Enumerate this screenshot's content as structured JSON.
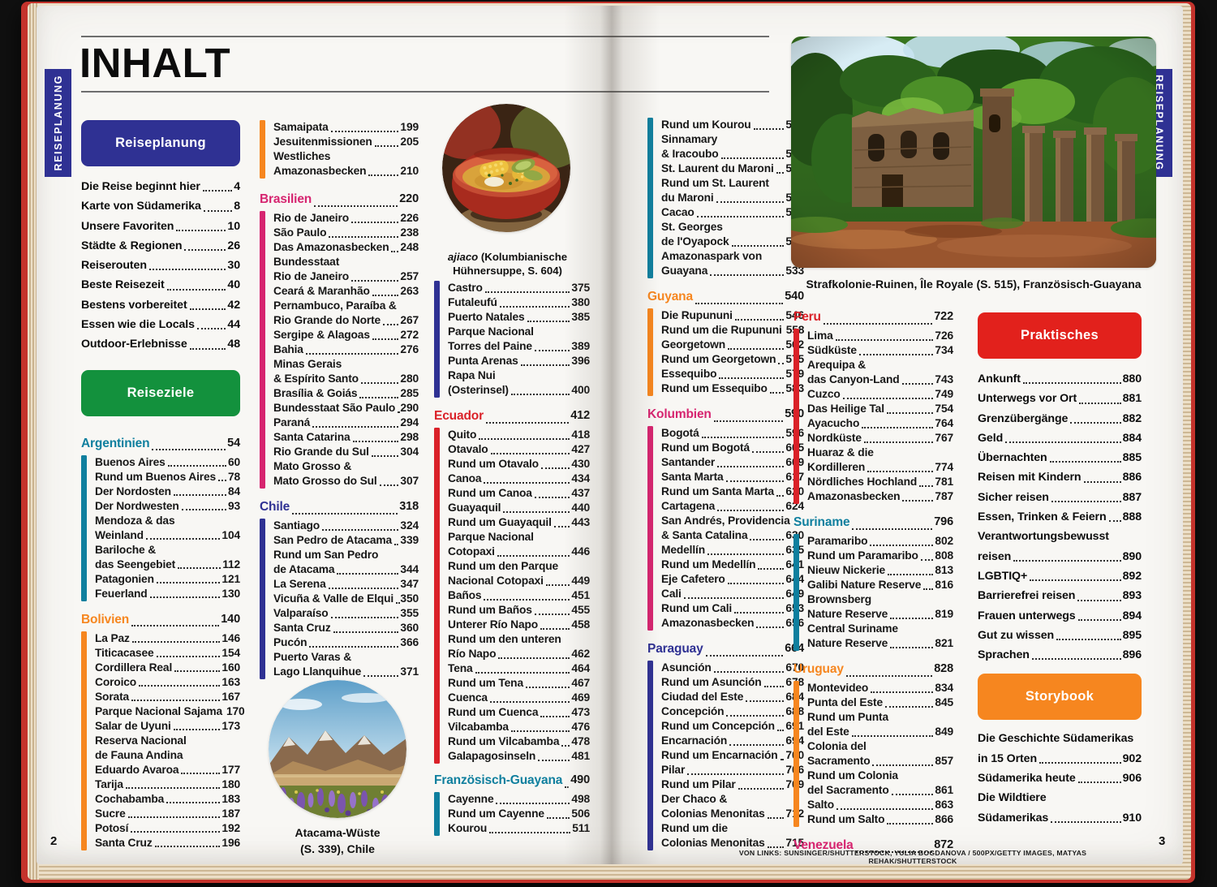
{
  "meta": {
    "title": "INHALT",
    "tab_left": "REISEPLANUNG",
    "tab_right": "REISEPLANUNG",
    "page_left_number": "2",
    "page_right_number": "3",
    "credit": "VON LINKS: SUNSINGER/SHUTTERSTOCK, YULIA BOGDANOVA / 500PX/GETTY IMAGES, MATYAS REHAK/SHUTTERSTOCK"
  },
  "palette": {
    "teal": "#0f7f9e",
    "orange": "#f6861f",
    "magenta": "#d6246f",
    "indigo": "#2f3193",
    "red": "#da2128",
    "box_blue": "#2f3193",
    "box_green": "#13913d",
    "box_red": "#e2211c",
    "box_orange": "#f6861f"
  },
  "captions": {
    "ajiaco_italic": "ajiaco",
    "ajiaco_rest": " (Kolumbianische Hühnersuppe, S. 604)",
    "atacama_line1": "Atacama-Wüste",
    "atacama_line2": "(S. 339), Chile",
    "ruins": "Strafkolonie-Ruinen, Île Royale (S. 515), Französisch-Guayana"
  },
  "toc": {
    "colA": [
      {
        "box": "Reiseplanung",
        "color": "box_blue"
      },
      {
        "plain": true,
        "items": [
          {
            "t": "Die Reise beginnt hier",
            "p": "4"
          },
          {
            "t": "Karte von Südamerika",
            "p": "8"
          },
          {
            "t": "Unsere Favoriten",
            "p": "10"
          },
          {
            "t": "Städte & Regionen",
            "p": "26"
          },
          {
            "t": "Reiserouten",
            "p": "30"
          },
          {
            "t": "Beste Reisezeit",
            "p": "40"
          },
          {
            "t": "Bestens vorbereitet",
            "p": "42"
          },
          {
            "t": "Essen wie die Locals",
            "p": "44"
          },
          {
            "t": "Outdoor-Erlebnisse",
            "p": "48"
          }
        ]
      },
      {
        "box": "Reiseziele",
        "color": "box_green"
      },
      {
        "h": "Argentinien",
        "hp": "54",
        "c": "teal",
        "items": [
          {
            "t": "Buenos Aires",
            "p": "60"
          },
          {
            "t": "Rund um Buenos Aires",
            "p": "78"
          },
          {
            "t": "Der Nordosten",
            "p": "84"
          },
          {
            "t": "Der Nordwesten",
            "p": "93"
          },
          {
            "t": "Mendoza & das|Weinland",
            "p": "104"
          },
          {
            "t": "Bariloche &|das Seengebiet",
            "p": "112"
          },
          {
            "t": "Patagonien",
            "p": "121"
          },
          {
            "t": "Feuerland",
            "p": "130"
          }
        ]
      },
      {
        "h": "Bolivien",
        "hp": "140",
        "c": "orange",
        "items": [
          {
            "t": "La Paz",
            "p": "146"
          },
          {
            "t": "Titicacasee",
            "p": "154"
          },
          {
            "t": "Cordillera Real",
            "p": "160"
          },
          {
            "t": "Coroico",
            "p": "163"
          },
          {
            "t": "Sorata",
            "p": "167"
          },
          {
            "t": "Parque Nacional Sajama",
            "p": "170"
          },
          {
            "t": "Salar de Uyuni",
            "p": "173"
          },
          {
            "t": "Reserva Nacional|de Fauna Andina|Eduardo Avaroa",
            "p": "177"
          },
          {
            "t": "Tarija",
            "p": "180"
          },
          {
            "t": "Cochabamba",
            "p": "183"
          },
          {
            "t": "Sucre",
            "p": "187"
          },
          {
            "t": "Potosí",
            "p": "192"
          },
          {
            "t": "Santa Cruz",
            "p": "196"
          }
        ]
      }
    ],
    "colB": [
      {
        "c": "orange",
        "items": [
          {
            "t": "Samaipata",
            "p": "199"
          },
          {
            "t": "Jesuitenmissionen",
            "p": "205"
          },
          {
            "t": "Westliches|Amazonasbecken",
            "p": "210"
          }
        ]
      },
      {
        "h": "Brasilien",
        "hp": "220",
        "c": "magenta",
        "items": [
          {
            "t": "Rio de Janeiro",
            "p": "226"
          },
          {
            "t": "São Paulo",
            "p": "238"
          },
          {
            "t": "Das Amazonasbecken",
            "p": "248"
          },
          {
            "t": "Bundesstaat|Rio de Janeiro",
            "p": "257"
          },
          {
            "t": "Ceará & Maranhão",
            "p": "263"
          },
          {
            "t": "Pernambuco, Paraíba &|Rio Grande do Norte",
            "p": "267"
          },
          {
            "t": "Sergipe & Alagoas",
            "p": "272"
          },
          {
            "t": "Bahia",
            "p": "276"
          },
          {
            "t": "Minas Gerais|& Espírito Santo",
            "p": "280"
          },
          {
            "t": "Brasília & Goiás",
            "p": "285"
          },
          {
            "t": "Bundesstaat São Paulo",
            "p": "290"
          },
          {
            "t": "Paraná",
            "p": "294"
          },
          {
            "t": "Santa Catarina",
            "p": "298"
          },
          {
            "t": "Rio Grande du Sul",
            "p": "304"
          },
          {
            "t": "Mato Grosso &|Mato Grosso do Sul",
            "p": "307"
          }
        ]
      },
      {
        "h": "Chile",
        "hp": "318",
        "c": "indigo",
        "items": [
          {
            "t": "Santiago",
            "p": "324"
          },
          {
            "t": "San Pedro de Atacama",
            "p": "339"
          },
          {
            "t": "Rund um San Pedro|de Atacama",
            "p": "344"
          },
          {
            "t": "La Serena",
            "p": "347"
          },
          {
            "t": "Vicuña & Valle de Elqui",
            "p": "350"
          },
          {
            "t": "Valparaíso",
            "p": "355"
          },
          {
            "t": "Santa Cruz",
            "p": "360"
          },
          {
            "t": "Pucón",
            "p": "366"
          },
          {
            "t": "Puerto Varas &|Lago Llanquihue",
            "p": "371"
          }
        ]
      }
    ],
    "colC": [
      {
        "c": "indigo",
        "items": [
          {
            "t": "Castro",
            "p": "375"
          },
          {
            "t": "Futaleufú",
            "p": "380"
          },
          {
            "t": "Puerto Natales",
            "p": "385"
          },
          {
            "t": "Parque Nacional|Torres del Paine",
            "p": "389"
          },
          {
            "t": "Punta Arenas",
            "p": "396"
          },
          {
            "t": "Rapa Nui|(Osterinsel)",
            "p": "400"
          }
        ]
      },
      {
        "h": "Ecuador",
        "hp": "412",
        "c": "red",
        "items": [
          {
            "t": "Quito",
            "p": "418"
          },
          {
            "t": "Otavalo",
            "p": "427"
          },
          {
            "t": "Rund um Otavalo",
            "p": "430"
          },
          {
            "t": "Canoa",
            "p": "434"
          },
          {
            "t": "Rund um Canoa",
            "p": "437"
          },
          {
            "t": "Guayaquil",
            "p": "440"
          },
          {
            "t": "Rund um Guayaquil",
            "p": "443"
          },
          {
            "t": "Parque Nacional|Cotopaxi",
            "p": "446"
          },
          {
            "t": "Rund um den Parque|Nacional Cotopaxi",
            "p": "449"
          },
          {
            "t": "Baños",
            "p": "451"
          },
          {
            "t": "Rund um Baños",
            "p": "455"
          },
          {
            "t": "Unterer Río Napo",
            "p": "458"
          },
          {
            "t": "Rund um den unteren|Río Napo",
            "p": "462"
          },
          {
            "t": "Tena",
            "p": "464"
          },
          {
            "t": "Rund um Tena",
            "p": "467"
          },
          {
            "t": "Cuenca",
            "p": "469"
          },
          {
            "t": "Rund um Cuenca",
            "p": "473"
          },
          {
            "t": "Vilcabamba",
            "p": "476"
          },
          {
            "t": "Rund um Vilcabamba",
            "p": "478"
          },
          {
            "t": "Galapagosinseln",
            "p": "481"
          }
        ]
      },
      {
        "h": "Französisch-Guayana",
        "hp": "490",
        "c": "teal",
        "items": [
          {
            "t": "Cayenne",
            "p": "498"
          },
          {
            "t": "Rund um Cayenne",
            "p": "506"
          },
          {
            "t": "Kourou",
            "p": "511"
          }
        ]
      }
    ],
    "colD": [
      {
        "c": "teal",
        "items": [
          {
            "t": "Rund um Kourou",
            "p": "515"
          },
          {
            "t": "Sinnamary|& Iracoubo",
            "p": "518"
          },
          {
            "t": "St. Laurent du Maroni",
            "p": "520"
          },
          {
            "t": "Rund um St. Laurent|du Maroni",
            "p": "525"
          },
          {
            "t": "Cacao",
            "p": "527"
          },
          {
            "t": "St. Georges|de l'Oyapock",
            "p": "530"
          },
          {
            "t": "Amazonaspark von|Guayana",
            "p": "533"
          }
        ]
      },
      {
        "h": "Guyana",
        "hp": "540",
        "c": "orange",
        "items": [
          {
            "t": "Die Rupununi",
            "p": "546"
          },
          {
            "t": "Rund um die Rupununi",
            "p": "558"
          },
          {
            "t": "Georgetown",
            "p": "562"
          },
          {
            "t": "Rund um Georgetown",
            "p": "575"
          },
          {
            "t": "Essequibo",
            "p": "579"
          },
          {
            "t": "Rund um Essequibo",
            "p": "583"
          }
        ]
      },
      {
        "h": "Kolumbien",
        "hp": "590",
        "c": "magenta",
        "items": [
          {
            "t": "Bogotá",
            "p": "596"
          },
          {
            "t": "Rund um Bogotá",
            "p": "605"
          },
          {
            "t": "Santander",
            "p": "609"
          },
          {
            "t": "Santa Marta",
            "p": "617"
          },
          {
            "t": "Rund um Santa Marta",
            "p": "620"
          },
          {
            "t": "Cartagena",
            "p": "624"
          },
          {
            "t": "San Andrés, Providencia|& Santa Catalina",
            "p": "630"
          },
          {
            "t": "Medellín",
            "p": "635"
          },
          {
            "t": "Rund um Medellín",
            "p": "641"
          },
          {
            "t": "Eje Cafetero",
            "p": "644"
          },
          {
            "t": "Cali",
            "p": "649"
          },
          {
            "t": "Rund um Cali",
            "p": "653"
          },
          {
            "t": "Amazonasbecken",
            "p": "656"
          }
        ]
      },
      {
        "h": "Paraguay",
        "hp": "664",
        "c": "indigo",
        "items": [
          {
            "t": "Asunción",
            "p": "670"
          },
          {
            "t": "Rund um Asunción",
            "p": "678"
          },
          {
            "t": "Ciudad del Este",
            "p": "684"
          },
          {
            "t": "Concepción",
            "p": "688"
          },
          {
            "t": "Rund um Concepción",
            "p": "691"
          },
          {
            "t": "Encarnación",
            "p": "694"
          },
          {
            "t": "Rund um Encarnación",
            "p": "700"
          },
          {
            "t": "Pilar",
            "p": "706"
          },
          {
            "t": "Rund um Pilar",
            "p": "709"
          },
          {
            "t": "Der Chaco &|Colonias Menonitas",
            "p": "712"
          },
          {
            "t": "Rund um die|Colonias Menonitas",
            "p": "715"
          }
        ]
      }
    ],
    "colE": [
      {
        "h": "Peru",
        "hp": "722",
        "c": "red",
        "items": [
          {
            "t": "Lima",
            "p": "726"
          },
          {
            "t": "Südküste",
            "p": "734"
          },
          {
            "t": "Arequipa &|das Canyon-Land",
            "p": "743"
          },
          {
            "t": "Cuzco",
            "p": "749"
          },
          {
            "t": "Das Heilige Tal",
            "p": "754"
          },
          {
            "t": "Ayacucho",
            "p": "764"
          },
          {
            "t": "Nordküste",
            "p": "767"
          },
          {
            "t": "Huaraz & die|Kordilleren",
            "p": "774"
          },
          {
            "t": "Nördliches Hochland",
            "p": "781"
          },
          {
            "t": "Amazonasbecken",
            "p": "787"
          }
        ]
      },
      {
        "h": "Suriname",
        "hp": "796",
        "c": "teal",
        "items": [
          {
            "t": "Paramaribo",
            "p": "802"
          },
          {
            "t": "Rund um Paramaribo",
            "p": "808"
          },
          {
            "t": "Nieuw Nickerie",
            "p": "813"
          },
          {
            "t": "Galibi Nature Reserve",
            "p": "816"
          },
          {
            "t": "Brownsberg|Nature Reserve",
            "p": "819"
          },
          {
            "t": "Central Suriname|Nature Reserve",
            "p": "821"
          }
        ]
      },
      {
        "h": "Uruguay",
        "hp": "828",
        "c": "orange",
        "items": [
          {
            "t": "Montevideo",
            "p": "834"
          },
          {
            "t": "Punta del Este",
            "p": "845"
          },
          {
            "t": "Rund um Punta|del Este",
            "p": "849"
          },
          {
            "t": "Colonia del|Sacramento",
            "p": "857"
          },
          {
            "t": "Rund um Colonia|del Sacramento",
            "p": "861"
          },
          {
            "t": "Salto",
            "p": "863"
          },
          {
            "t": "Rund um Salto",
            "p": "866"
          }
        ]
      },
      {
        "h": "Venezuela",
        "hp": "872",
        "c": "magenta",
        "items": []
      }
    ],
    "colF": [
      {
        "box": "Praktisches",
        "color": "box_red"
      },
      {
        "plain": true,
        "items": [
          {
            "t": "Ankunft",
            "p": "880"
          },
          {
            "t": "Unterwegs vor Ort",
            "p": "881"
          },
          {
            "t": "Grenzübergänge",
            "p": "882"
          },
          {
            "t": "Geld",
            "p": "884"
          },
          {
            "t": "Übernachten",
            "p": "885"
          },
          {
            "t": "Reisen mit Kindern",
            "p": "886"
          },
          {
            "t": "Sicher reisen",
            "p": "887"
          },
          {
            "t": "Essen, Trinken & Feiern",
            "p": "888"
          },
          {
            "t": "Verantwortungsbewusst|reisen",
            "p": "890"
          },
          {
            "t": "LGBTIQ+",
            "p": "892"
          },
          {
            "t": "Barrierefrei reisen",
            "p": "893"
          },
          {
            "t": "Frauen unterwegs",
            "p": "894"
          },
          {
            "t": "Gut zu wissen",
            "p": "895"
          },
          {
            "t": "Sprachen",
            "p": "896"
          }
        ]
      },
      {
        "box": "Storybook",
        "color": "box_orange"
      },
      {
        "plain": true,
        "items": [
          {
            "t": "Die Geschichte Südamerikas|in 15 Orten",
            "p": "902"
          },
          {
            "t": "Südamerika heute",
            "p": "906"
          },
          {
            "t": "Die Wildtiere|Südamerikas",
            "p": "910"
          }
        ]
      }
    ]
  }
}
